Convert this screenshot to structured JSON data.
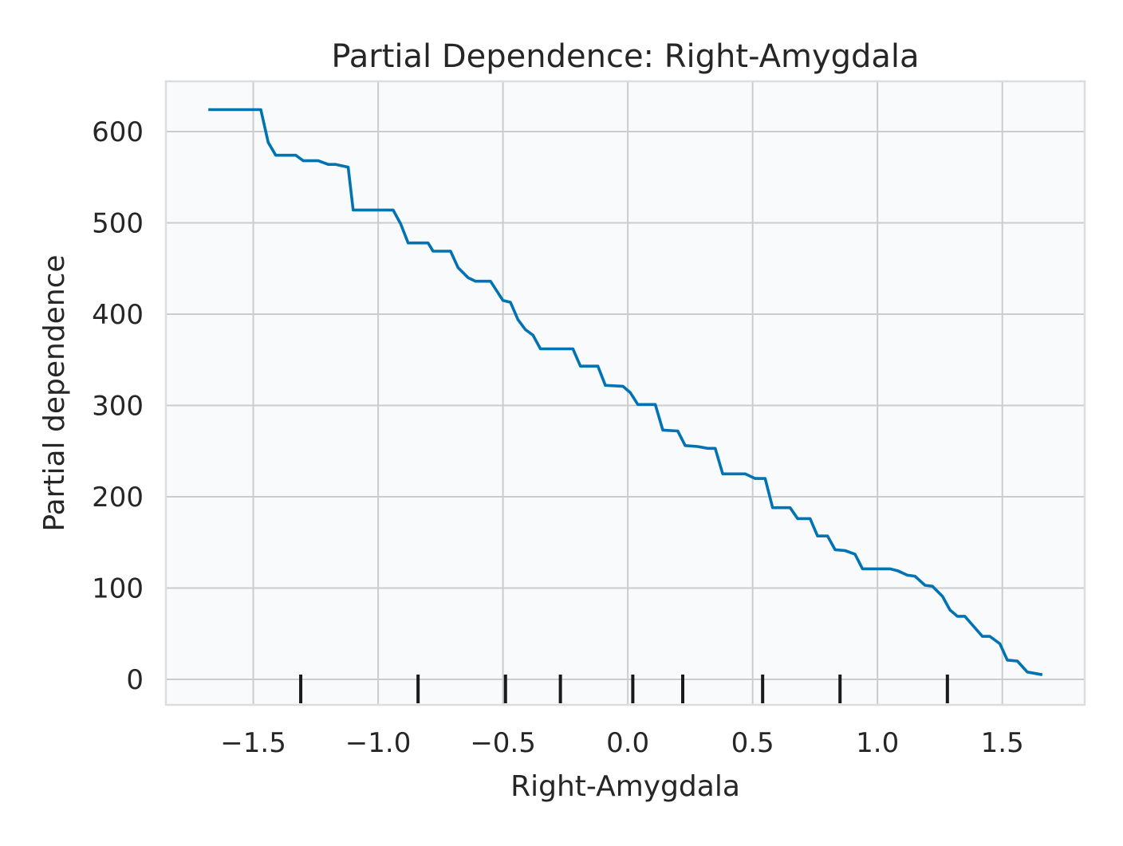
{
  "chart_data": {
    "type": "line",
    "title": "Partial Dependence: Right-Amygdala",
    "xlabel": "Right-Amygdala",
    "ylabel": "Partial dependence",
    "xlim": [
      -1.85,
      1.83
    ],
    "ylim": [
      -28,
      655
    ],
    "x_ticks": [
      -1.5,
      -1.0,
      -0.5,
      0.0,
      0.5,
      1.0,
      1.5
    ],
    "x_tick_labels": [
      "−1.5",
      "−1.0",
      "−0.5",
      "0.0",
      "0.5",
      "1.0",
      "1.5"
    ],
    "y_ticks": [
      0,
      100,
      200,
      300,
      400,
      500,
      600
    ],
    "y_tick_labels": [
      "0",
      "100",
      "200",
      "300",
      "400",
      "500",
      "600"
    ],
    "grid": true,
    "legend": "none",
    "colors": {
      "line": "#0173b2",
      "plot_background": "#f8fafc",
      "grid": "#cccccc",
      "frame": "#dddddd",
      "rug": "#1a1a1a",
      "text": "#262626"
    },
    "series": [
      {
        "x": [
          -1.68,
          -1.47,
          -1.44,
          -1.41,
          -1.33,
          -1.3,
          -1.24,
          -1.2,
          -1.17,
          -1.12,
          -1.1,
          -1.07,
          -0.94,
          -0.91,
          -0.88,
          -0.8,
          -0.78,
          -0.74,
          -0.71,
          -0.68,
          -0.64,
          -0.61,
          -0.55,
          -0.5,
          -0.47,
          -0.44,
          -0.41,
          -0.38,
          -0.35,
          -0.32,
          -0.22,
          -0.19,
          -0.12,
          -0.09,
          -0.02,
          0.01,
          0.04,
          0.11,
          0.14,
          0.2,
          0.23,
          0.28,
          0.32,
          0.35,
          0.38,
          0.47,
          0.51,
          0.55,
          0.58,
          0.65,
          0.68,
          0.73,
          0.76,
          0.8,
          0.83,
          0.87,
          0.91,
          0.94,
          1.05,
          1.08,
          1.12,
          1.15,
          1.19,
          1.22,
          1.26,
          1.29,
          1.32,
          1.35,
          1.42,
          1.45,
          1.49,
          1.52,
          1.56,
          1.6,
          1.66
        ],
        "y": [
          624,
          624,
          588,
          574,
          574,
          568,
          568,
          564,
          564,
          561,
          514,
          514,
          514,
          499,
          478,
          478,
          469,
          469,
          469,
          451,
          440,
          436,
          436,
          415,
          413,
          394,
          383,
          377,
          362,
          362,
          362,
          343,
          343,
          322,
          321,
          314,
          301,
          301,
          273,
          272,
          256,
          255,
          253,
          253,
          225,
          225,
          220,
          220,
          188,
          188,
          176,
          176,
          157,
          157,
          142,
          141,
          137,
          121,
          121,
          119,
          114,
          113,
          103,
          102,
          91,
          76,
          69,
          69,
          47,
          47,
          39,
          21,
          20,
          8,
          5
        ]
      }
    ],
    "rug_x": [
      -1.31,
      -0.84,
      -0.49,
      -0.27,
      0.02,
      0.22,
      0.54,
      0.85,
      1.28
    ]
  }
}
